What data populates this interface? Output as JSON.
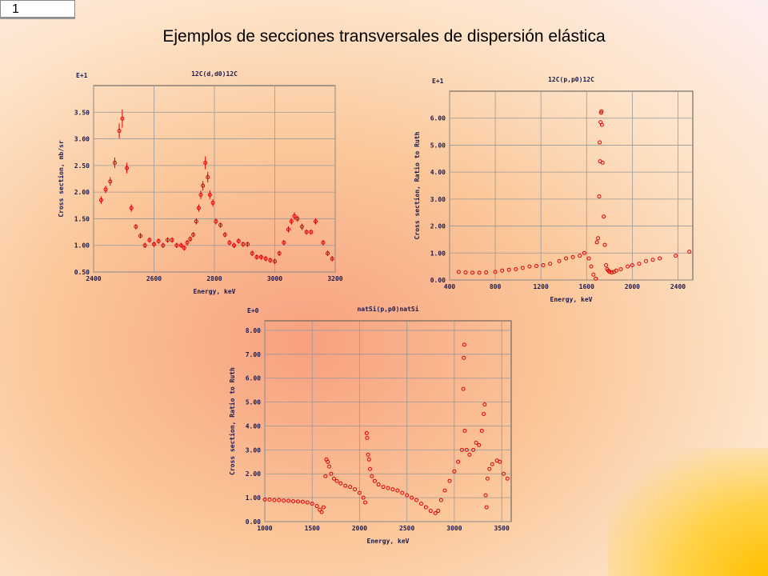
{
  "slide": {
    "number": "1",
    "title": "Ejemplos de secciones transversales de dispersión elástica"
  },
  "chart_data": [
    {
      "type": "scatter",
      "title": "12C(d,d0)12C",
      "x_label": "Energy, keV",
      "y_label": "Cross section, mb/sr",
      "scale_label": "E+1",
      "color": "#e00000",
      "grid": true,
      "xlim": [
        2400,
        3200
      ],
      "xticks": [
        2400,
        2600,
        2800,
        3000,
        3200
      ],
      "ylim": [
        0.5,
        4.0
      ],
      "yticks": [
        {
          "value": 0.5,
          "label": "0.50"
        },
        {
          "value": 1,
          "label": "1.00"
        },
        {
          "value": 1.5,
          "label": "1.50"
        },
        {
          "value": 2,
          "label": "2.00"
        },
        {
          "value": 2.5,
          "label": "2.50"
        },
        {
          "value": 3,
          "label": "3.00"
        },
        {
          "value": 3.5,
          "label": "3.50"
        }
      ],
      "x": [
        2425,
        2440,
        2455,
        2470,
        2485,
        2495,
        2510,
        2525,
        2540,
        2555,
        2570,
        2585,
        2600,
        2615,
        2630,
        2645,
        2660,
        2675,
        2690,
        2700,
        2710,
        2720,
        2730,
        2740,
        2748,
        2755,
        2762,
        2770,
        2778,
        2785,
        2795,
        2805,
        2820,
        2835,
        2850,
        2865,
        2880,
        2895,
        2910,
        2925,
        2940,
        2955,
        2970,
        2985,
        3000,
        3015,
        3030,
        3045,
        3055,
        3065,
        3075,
        3090,
        3105,
        3120,
        3135,
        3160,
        3175,
        3190
      ],
      "values": [
        1.85,
        2.05,
        2.2,
        2.55,
        3.15,
        3.38,
        2.45,
        1.7,
        1.35,
        1.18,
        1.0,
        1.1,
        1.02,
        1.08,
        1.0,
        1.1,
        1.1,
        1.0,
        1.0,
        0.95,
        1.05,
        1.12,
        1.2,
        1.45,
        1.7,
        1.95,
        2.12,
        2.55,
        2.28,
        1.95,
        1.8,
        1.45,
        1.38,
        1.2,
        1.05,
        1.0,
        1.08,
        1.02,
        1.02,
        0.85,
        0.78,
        0.78,
        0.75,
        0.72,
        0.7,
        0.85,
        1.05,
        1.3,
        1.45,
        1.55,
        1.5,
        1.35,
        1.25,
        1.25,
        1.45,
        1.05,
        0.85,
        0.75
      ],
      "errors": [
        0.07,
        0.07,
        0.08,
        0.1,
        0.14,
        0.17,
        0.1,
        0.07,
        0.05,
        0.05,
        0.05,
        0.05,
        0.05,
        0.05,
        0.05,
        0.05,
        0.05,
        0.05,
        0.05,
        0.05,
        0.05,
        0.05,
        0.05,
        0.06,
        0.07,
        0.08,
        0.09,
        0.12,
        0.1,
        0.08,
        0.07,
        0.06,
        0.05,
        0.05,
        0.05,
        0.05,
        0.05,
        0.05,
        0.05,
        0.05,
        0.05,
        0.05,
        0.05,
        0.05,
        0.05,
        0.05,
        0.05,
        0.06,
        0.06,
        0.07,
        0.06,
        0.06,
        0.05,
        0.05,
        0.06,
        0.05,
        0.05,
        0.05
      ]
    },
    {
      "type": "scatter",
      "title": "12C(p,p0)12C",
      "x_label": "Energy, keV",
      "y_label": "Cross section, Ratio to Ruth",
      "scale_label": "E+1",
      "color": "#e00000",
      "grid": true,
      "xlim": [
        400,
        2530
      ],
      "xticks": [
        400,
        800,
        1200,
        1600,
        2000,
        2400
      ],
      "ylim": [
        0,
        7
      ],
      "yticks": [
        {
          "value": 0,
          "label": "0.00"
        },
        {
          "value": 1,
          "label": "1.00"
        },
        {
          "value": 2,
          "label": "2.00"
        },
        {
          "value": 3,
          "label": "3.00"
        },
        {
          "value": 4,
          "label": "4.00"
        },
        {
          "value": 5,
          "label": "5.00"
        },
        {
          "value": 6,
          "label": "6.00"
        }
      ],
      "x": [
        480,
        540,
        600,
        660,
        720,
        800,
        860,
        920,
        980,
        1040,
        1100,
        1160,
        1220,
        1280,
        1360,
        1420,
        1480,
        1540,
        1580,
        1620,
        1640,
        1660,
        1680,
        1690,
        1700,
        1710,
        1715,
        1718,
        1722,
        1726,
        1730,
        1734,
        1740,
        1750,
        1760,
        1770,
        1780,
        1790,
        1800,
        1820,
        1840,
        1860,
        1900,
        1960,
        2000,
        2060,
        2120,
        2180,
        2240,
        2380,
        2500
      ],
      "values": [
        0.3,
        0.28,
        0.27,
        0.27,
        0.28,
        0.3,
        0.35,
        0.38,
        0.4,
        0.45,
        0.5,
        0.52,
        0.55,
        0.6,
        0.7,
        0.8,
        0.85,
        0.9,
        1.0,
        0.8,
        0.5,
        0.2,
        0.05,
        1.4,
        1.55,
        3.1,
        5.1,
        4.4,
        5.85,
        6.2,
        6.25,
        5.75,
        4.35,
        2.35,
        1.3,
        0.55,
        0.4,
        0.35,
        0.3,
        0.28,
        0.3,
        0.35,
        0.4,
        0.5,
        0.55,
        0.6,
        0.7,
        0.75,
        0.8,
        0.9,
        1.05
      ]
    },
    {
      "type": "scatter",
      "title": "natSi(p,p0)natSi",
      "x_label": "Energy, keV",
      "y_label": "Cross section, Ratio to Ruth",
      "scale_label": "E+0",
      "color": "#e00000",
      "grid": true,
      "xlim": [
        1000,
        3600
      ],
      "xticks": [
        1000,
        1500,
        2000,
        2500,
        3000,
        3500
      ],
      "ylim": [
        0,
        8.4
      ],
      "yticks": [
        {
          "value": 0,
          "label": "0.00"
        },
        {
          "value": 1,
          "label": "1.00"
        },
        {
          "value": 2,
          "label": "2.00"
        },
        {
          "value": 3,
          "label": "3.00"
        },
        {
          "value": 4,
          "label": "4.00"
        },
        {
          "value": 5,
          "label": "5.00"
        },
        {
          "value": 6,
          "label": "6.00"
        },
        {
          "value": 7,
          "label": "7.00"
        },
        {
          "value": 8,
          "label": "8.00"
        }
      ],
      "x": [
        1000,
        1050,
        1100,
        1150,
        1200,
        1250,
        1300,
        1350,
        1400,
        1450,
        1500,
        1550,
        1580,
        1600,
        1620,
        1640,
        1650,
        1665,
        1680,
        1700,
        1730,
        1760,
        1800,
        1850,
        1900,
        1950,
        2000,
        2040,
        2060,
        2075,
        2080,
        2090,
        2100,
        2110,
        2130,
        2160,
        2200,
        2250,
        2300,
        2350,
        2400,
        2450,
        2500,
        2550,
        2600,
        2650,
        2700,
        2750,
        2800,
        2830,
        2860,
        2900,
        2950,
        3000,
        3040,
        3080,
        3095,
        3100,
        3105,
        3110,
        3130,
        3160,
        3200,
        3230,
        3260,
        3290,
        3310,
        3320,
        3330,
        3340,
        3350,
        3370,
        3400,
        3450,
        3480,
        3520,
        3560
      ],
      "values": [
        0.92,
        0.92,
        0.9,
        0.9,
        0.88,
        0.87,
        0.85,
        0.84,
        0.83,
        0.8,
        0.75,
        0.65,
        0.5,
        0.4,
        0.6,
        1.9,
        2.6,
        2.5,
        2.3,
        2.0,
        1.8,
        1.7,
        1.6,
        1.5,
        1.45,
        1.35,
        1.2,
        1.0,
        0.8,
        3.7,
        3.5,
        2.8,
        2.6,
        2.2,
        1.9,
        1.7,
        1.55,
        1.45,
        1.4,
        1.35,
        1.3,
        1.2,
        1.1,
        1.0,
        0.9,
        0.75,
        0.6,
        0.45,
        0.35,
        0.45,
        0.9,
        1.3,
        1.7,
        2.1,
        2.5,
        3.0,
        5.55,
        6.85,
        7.4,
        3.8,
        3.0,
        2.8,
        3.0,
        3.3,
        3.2,
        3.8,
        4.5,
        4.9,
        1.1,
        0.6,
        1.8,
        2.2,
        2.4,
        2.55,
        2.5,
        2.0,
        1.8
      ]
    }
  ]
}
